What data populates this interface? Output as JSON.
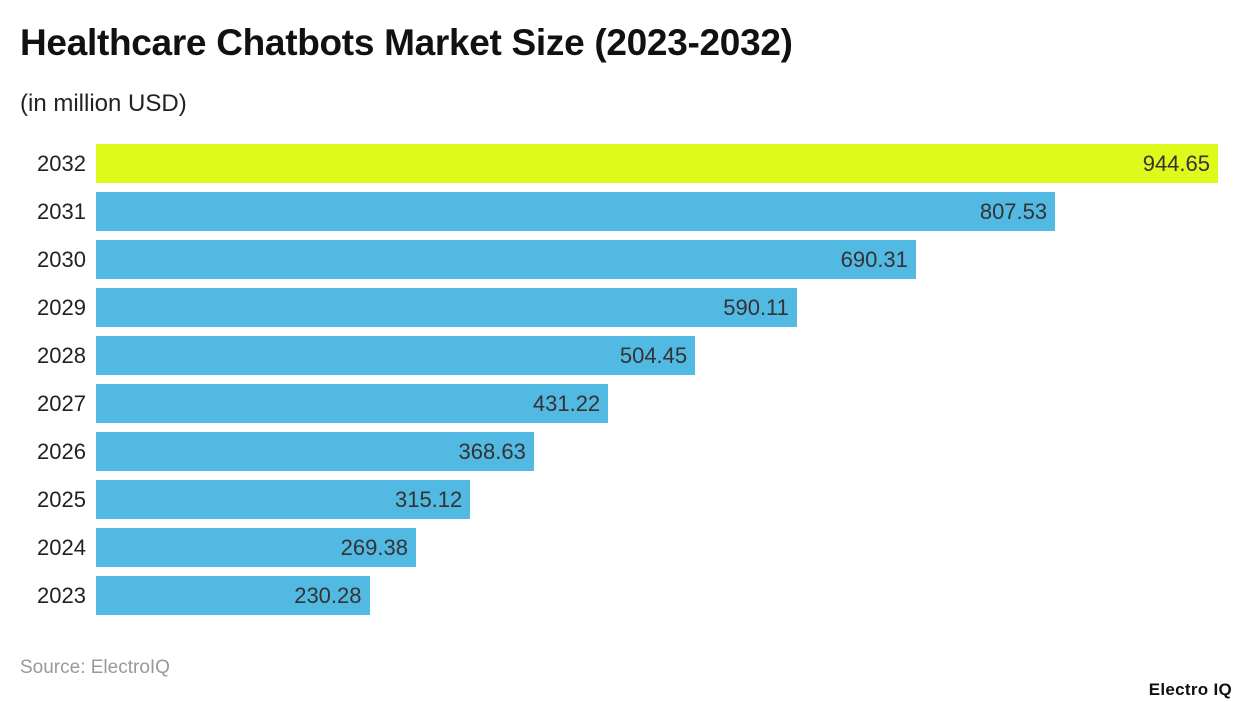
{
  "chart_data": {
    "type": "bar",
    "orientation": "horizontal",
    "title": "Healthcare Chatbots Market Size (2023-2032)",
    "subtitle": "(in million USD)",
    "categories": [
      "2032",
      "2031",
      "2030",
      "2029",
      "2028",
      "2027",
      "2026",
      "2025",
      "2024",
      "2023"
    ],
    "values": [
      944.65,
      807.53,
      690.31,
      590.11,
      504.45,
      431.22,
      368.63,
      315.12,
      269.38,
      230.28
    ],
    "value_labels": [
      "944.65",
      "807.53",
      "690.31",
      "590.11",
      "504.45",
      "431.22",
      "368.63",
      "315.12",
      "269.38",
      "230.28"
    ],
    "xlim": [
      0,
      944.65
    ],
    "grid": false,
    "colors": {
      "default": "#52B9E2",
      "highlight": "#DDFA1A"
    },
    "highlight_category": "2032",
    "source": "Source: ElectroIQ"
  },
  "logo": "Electro IQ"
}
